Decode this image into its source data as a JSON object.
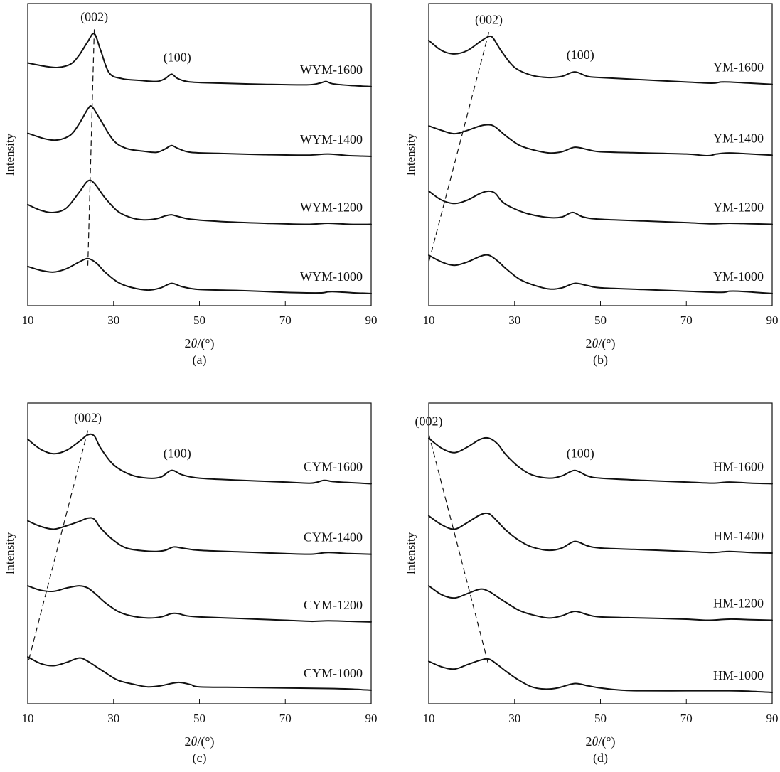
{
  "chart_data": [
    {
      "type": "line",
      "panel_label": "(a)",
      "xlabel_prefix": "2",
      "xlabel_symbol": "θ",
      "xlabel_suffix": "/(°)",
      "ylabel": "Intensity",
      "xlim": [
        10,
        90
      ],
      "xticks": [
        "10",
        "30",
        "50",
        "70",
        "90"
      ],
      "grid": false,
      "annotations": [
        "(002)",
        "(100)"
      ],
      "series": [
        {
          "name": "WYM-1600",
          "x": [
            10,
            14,
            17,
            20,
            22,
            24,
            25.5,
            27,
            29,
            32,
            36,
            40,
            42,
            43.5,
            45,
            48,
            55,
            65,
            75,
            78,
            79.5,
            81,
            85,
            90
          ],
          "y": [
            0.48,
            0.42,
            0.4,
            0.46,
            0.62,
            0.86,
            1.0,
            0.7,
            0.3,
            0.2,
            0.17,
            0.15,
            0.2,
            0.28,
            0.2,
            0.14,
            0.12,
            0.1,
            0.09,
            0.12,
            0.15,
            0.11,
            0.08,
            0.06
          ]
        },
        {
          "name": "WYM-1400",
          "x": [
            10,
            14,
            17,
            20,
            22,
            24,
            25,
            27,
            30,
            33,
            37,
            40,
            42,
            43.5,
            45,
            48,
            55,
            65,
            75,
            80,
            85,
            90
          ],
          "y": [
            0.45,
            0.35,
            0.33,
            0.42,
            0.62,
            0.88,
            0.92,
            0.68,
            0.32,
            0.18,
            0.13,
            0.11,
            0.17,
            0.23,
            0.18,
            0.11,
            0.09,
            0.07,
            0.06,
            0.08,
            0.05,
            0.04
          ]
        },
        {
          "name": "WYM-1200",
          "x": [
            10,
            13,
            16,
            19,
            22,
            24,
            25.5,
            28,
            31,
            34,
            37,
            40,
            42,
            43.5,
            45,
            48,
            55,
            65,
            75,
            80,
            85,
            90
          ],
          "y": [
            0.4,
            0.3,
            0.26,
            0.34,
            0.62,
            0.82,
            0.78,
            0.52,
            0.28,
            0.17,
            0.13,
            0.15,
            0.2,
            0.22,
            0.19,
            0.14,
            0.1,
            0.07,
            0.05,
            0.07,
            0.05,
            0.05
          ]
        },
        {
          "name": "WYM-1000",
          "x": [
            10,
            13,
            16,
            19,
            22,
            24,
            26,
            28,
            31,
            34,
            38,
            41,
            43.5,
            46,
            50,
            60,
            70,
            78,
            80,
            82,
            86,
            90
          ],
          "y": [
            0.52,
            0.45,
            0.42,
            0.48,
            0.6,
            0.66,
            0.58,
            0.42,
            0.24,
            0.15,
            0.1,
            0.14,
            0.22,
            0.16,
            0.11,
            0.09,
            0.06,
            0.05,
            0.07,
            0.07,
            0.05,
            0.04
          ]
        }
      ]
    },
    {
      "type": "line",
      "panel_label": "(b)",
      "xlabel_prefix": "2",
      "xlabel_symbol": "θ",
      "xlabel_suffix": "/(°)",
      "ylabel": "Intensity",
      "xlim": [
        10,
        90
      ],
      "xticks": [
        "10",
        "30",
        "50",
        "70",
        "90"
      ],
      "grid": false,
      "annotations": [
        "(002)",
        "(100)"
      ],
      "series": [
        {
          "name": "YM-1600",
          "x": [
            10,
            13,
            16,
            19,
            22,
            24,
            25,
            27,
            30,
            34,
            38,
            41,
            44,
            47,
            50,
            60,
            70,
            76,
            78,
            80,
            85,
            90
          ],
          "y": [
            0.88,
            0.7,
            0.64,
            0.7,
            0.86,
            0.95,
            0.92,
            0.68,
            0.4,
            0.26,
            0.22,
            0.24,
            0.32,
            0.24,
            0.22,
            0.18,
            0.14,
            0.12,
            0.14,
            0.14,
            0.12,
            0.1
          ]
        },
        {
          "name": "YM-1400",
          "x": [
            10,
            13,
            16,
            19,
            22,
            24,
            25.5,
            28,
            31,
            34,
            38,
            41,
            44,
            47,
            50,
            60,
            70,
            75,
            77,
            80,
            85,
            90
          ],
          "y": [
            0.58,
            0.5,
            0.44,
            0.5,
            0.58,
            0.6,
            0.56,
            0.4,
            0.24,
            0.16,
            0.1,
            0.12,
            0.2,
            0.16,
            0.12,
            0.1,
            0.08,
            0.05,
            0.08,
            0.1,
            0.08,
            0.06
          ]
        },
        {
          "name": "YM-1200",
          "x": [
            10,
            13,
            16,
            19,
            22,
            24,
            25.5,
            27,
            29,
            33,
            38,
            41,
            43.5,
            46,
            50,
            60,
            70,
            76,
            80,
            85,
            90
          ],
          "y": [
            0.64,
            0.48,
            0.42,
            0.48,
            0.6,
            0.64,
            0.6,
            0.46,
            0.36,
            0.24,
            0.17,
            0.18,
            0.26,
            0.18,
            0.14,
            0.11,
            0.08,
            0.06,
            0.07,
            0.06,
            0.05
          ]
        },
        {
          "name": "YM-1000",
          "x": [
            10,
            13,
            16,
            19,
            22,
            24,
            26,
            28,
            31,
            34,
            38,
            41,
            44,
            47,
            50,
            60,
            70,
            78,
            80,
            82,
            86,
            90
          ],
          "y": [
            0.72,
            0.6,
            0.54,
            0.6,
            0.7,
            0.72,
            0.62,
            0.48,
            0.3,
            0.2,
            0.12,
            0.14,
            0.22,
            0.18,
            0.14,
            0.11,
            0.08,
            0.06,
            0.08,
            0.08,
            0.06,
            0.04
          ]
        }
      ]
    },
    {
      "type": "line",
      "panel_label": "(c)",
      "xlabel_prefix": "2",
      "xlabel_symbol": "θ",
      "xlabel_suffix": "/(°)",
      "ylabel": "Intensity",
      "xlim": [
        10,
        90
      ],
      "xticks": [
        "10",
        "30",
        "50",
        "70",
        "90"
      ],
      "grid": false,
      "annotations": [
        "(002)",
        "(100)"
      ],
      "series": [
        {
          "name": "CYM-1600",
          "x": [
            10,
            13,
            16,
            19,
            22,
            24,
            25.5,
            27,
            30,
            34,
            38,
            41,
            43.5,
            46,
            50,
            60,
            70,
            76,
            79,
            81,
            85,
            90
          ],
          "y": [
            0.9,
            0.72,
            0.64,
            0.7,
            0.86,
            0.98,
            0.96,
            0.74,
            0.44,
            0.26,
            0.2,
            0.22,
            0.34,
            0.26,
            0.2,
            0.16,
            0.13,
            0.11,
            0.16,
            0.14,
            0.12,
            0.1
          ]
        },
        {
          "name": "CYM-1400",
          "x": [
            10,
            13,
            16,
            19,
            22,
            24,
            25.5,
            27,
            30,
            33,
            37,
            40,
            42,
            44,
            46,
            50,
            60,
            70,
            76,
            80,
            85,
            90
          ],
          "y": [
            0.65,
            0.55,
            0.5,
            0.56,
            0.64,
            0.7,
            0.68,
            0.52,
            0.3,
            0.16,
            0.11,
            0.1,
            0.12,
            0.18,
            0.16,
            0.12,
            0.09,
            0.06,
            0.05,
            0.08,
            0.06,
            0.05
          ]
        },
        {
          "name": "CYM-1200",
          "x": [
            10,
            13,
            16,
            19,
            22,
            24,
            26,
            28,
            31,
            34,
            38,
            41,
            43.5,
            45,
            47,
            50,
            60,
            70,
            76,
            80,
            85,
            90
          ],
          "y": [
            0.7,
            0.62,
            0.6,
            0.66,
            0.7,
            0.66,
            0.54,
            0.4,
            0.24,
            0.16,
            0.12,
            0.14,
            0.2,
            0.2,
            0.16,
            0.14,
            0.11,
            0.08,
            0.06,
            0.07,
            0.06,
            0.05
          ]
        },
        {
          "name": "CYM-1000",
          "x": [
            10,
            13,
            16,
            19,
            22,
            24,
            26,
            28,
            31,
            35,
            38,
            41,
            45,
            48,
            50,
            60,
            70,
            80,
            85,
            90
          ],
          "y": [
            0.64,
            0.52,
            0.48,
            0.54,
            0.62,
            0.56,
            0.46,
            0.36,
            0.22,
            0.14,
            0.1,
            0.12,
            0.18,
            0.14,
            0.1,
            0.09,
            0.08,
            0.07,
            0.06,
            0.04
          ]
        }
      ]
    },
    {
      "type": "line",
      "panel_label": "(d)",
      "xlabel_prefix": "2",
      "xlabel_symbol": "θ",
      "xlabel_suffix": "/(°)",
      "ylabel": "Intensity",
      "xlim": [
        10,
        90
      ],
      "xticks": [
        "10",
        "30",
        "50",
        "70",
        "90"
      ],
      "grid": false,
      "annotations": [
        "(002)",
        "(100)"
      ],
      "series": [
        {
          "name": "HM-1600",
          "x": [
            10,
            13,
            16,
            19,
            22,
            24,
            26,
            28,
            31,
            34,
            38,
            41,
            44,
            47,
            50,
            60,
            70,
            76,
            80,
            85,
            90
          ],
          "y": [
            0.92,
            0.74,
            0.66,
            0.76,
            0.9,
            0.92,
            0.82,
            0.62,
            0.4,
            0.26,
            0.2,
            0.24,
            0.34,
            0.24,
            0.2,
            0.16,
            0.13,
            0.11,
            0.13,
            0.11,
            0.1
          ]
        },
        {
          "name": "HM-1400",
          "x": [
            10,
            13,
            16,
            19,
            22,
            24,
            26,
            28,
            31,
            34,
            38,
            41,
            44,
            47,
            50,
            60,
            70,
            76,
            80,
            85,
            90
          ],
          "y": [
            0.74,
            0.58,
            0.5,
            0.62,
            0.76,
            0.78,
            0.64,
            0.48,
            0.3,
            0.18,
            0.12,
            0.16,
            0.28,
            0.2,
            0.16,
            0.13,
            0.1,
            0.08,
            0.1,
            0.08,
            0.07
          ]
        },
        {
          "name": "HM-1200",
          "x": [
            10,
            13,
            16,
            19,
            22,
            24,
            26,
            28,
            31,
            34,
            38,
            41,
            44,
            47,
            50,
            60,
            70,
            75,
            80,
            85,
            90
          ],
          "y": [
            0.7,
            0.54,
            0.48,
            0.56,
            0.64,
            0.6,
            0.5,
            0.4,
            0.26,
            0.18,
            0.12,
            0.16,
            0.24,
            0.18,
            0.14,
            0.12,
            0.1,
            0.08,
            0.1,
            0.09,
            0.08
          ]
        },
        {
          "name": "HM-1000",
          "x": [
            10,
            13,
            16,
            19,
            22,
            24,
            26,
            28,
            31,
            34,
            37,
            40,
            44,
            47,
            50,
            55,
            60,
            70,
            80,
            85,
            90
          ],
          "y": [
            0.56,
            0.46,
            0.42,
            0.5,
            0.58,
            0.6,
            0.5,
            0.38,
            0.22,
            0.1,
            0.06,
            0.08,
            0.16,
            0.12,
            0.08,
            0.04,
            0.03,
            0.03,
            0.03,
            0.02,
            0.0
          ]
        }
      ]
    }
  ]
}
